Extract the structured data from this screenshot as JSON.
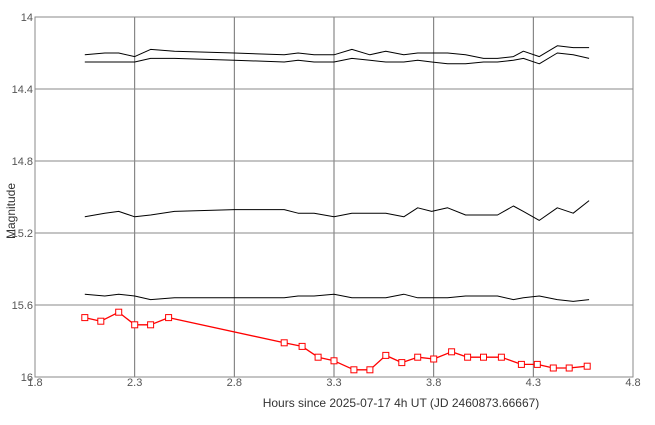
{
  "chart_data": {
    "type": "line",
    "title": "",
    "xlabel": "Hours since 2025-07-17 4h UT (JD 2460873.66667)",
    "ylabel": "Magnitude",
    "xlim": [
      1.8,
      4.8
    ],
    "ylim": [
      16,
      14
    ],
    "y_inverted": true,
    "x_ticks": [
      1.8,
      2.3,
      2.8,
      3.3,
      3.8,
      4.3,
      4.8
    ],
    "x_tick_labels": [
      "1.8",
      "2.3",
      "2.8",
      "3.3",
      "3.8",
      "4.3",
      "4.8"
    ],
    "y_ticks": [
      14,
      14.4,
      14.8,
      15.2,
      15.6,
      16
    ],
    "y_tick_labels": [
      "14",
      "14.4",
      "14.8",
      "15.2",
      "15.6",
      "16"
    ],
    "grid": true,
    "legend": "none",
    "series": [
      {
        "color": "#000000",
        "marker": "none",
        "x": [
          2.05,
          2.15,
          2.22,
          2.3,
          2.38,
          2.5,
          2.8,
          3.05,
          3.12,
          3.2,
          3.3,
          3.39,
          3.48,
          3.56,
          3.65,
          3.72,
          3.79,
          3.87,
          3.96,
          4.05,
          4.12,
          4.2,
          4.25,
          4.33,
          4.42,
          4.5,
          4.58
        ],
        "y": [
          14.21,
          14.2,
          14.2,
          14.22,
          14.18,
          14.19,
          14.2,
          14.21,
          14.2,
          14.21,
          14.21,
          14.18,
          14.21,
          14.19,
          14.21,
          14.2,
          14.2,
          14.2,
          14.21,
          14.23,
          14.23,
          14.22,
          14.19,
          14.22,
          14.16,
          14.17,
          14.17
        ]
      },
      {
        "color": "#000000",
        "marker": "none",
        "x": [
          2.05,
          2.15,
          2.22,
          2.3,
          2.38,
          2.5,
          2.8,
          3.05,
          3.12,
          3.2,
          3.3,
          3.39,
          3.48,
          3.56,
          3.65,
          3.72,
          3.79,
          3.87,
          3.96,
          4.05,
          4.12,
          4.2,
          4.25,
          4.33,
          4.42,
          4.5,
          4.58
        ],
        "y": [
          14.25,
          14.25,
          14.25,
          14.25,
          14.23,
          14.23,
          14.24,
          14.25,
          14.24,
          14.25,
          14.25,
          14.23,
          14.24,
          14.25,
          14.25,
          14.24,
          14.25,
          14.26,
          14.26,
          14.25,
          14.25,
          14.24,
          14.23,
          14.26,
          14.2,
          14.21,
          14.23
        ]
      },
      {
        "color": "#000000",
        "marker": "none",
        "x": [
          2.05,
          2.15,
          2.22,
          2.3,
          2.38,
          2.5,
          2.8,
          3.05,
          3.12,
          3.2,
          3.3,
          3.39,
          3.48,
          3.56,
          3.65,
          3.72,
          3.79,
          3.87,
          3.96,
          4.05,
          4.12,
          4.2,
          4.25,
          4.33,
          4.42,
          4.5,
          4.58
        ],
        "y": [
          15.11,
          15.09,
          15.08,
          15.11,
          15.1,
          15.08,
          15.07,
          15.07,
          15.09,
          15.09,
          15.11,
          15.09,
          15.09,
          15.09,
          15.11,
          15.06,
          15.08,
          15.06,
          15.1,
          15.1,
          15.1,
          15.05,
          15.08,
          15.13,
          15.06,
          15.09,
          15.02
        ]
      },
      {
        "color": "#000000",
        "marker": "none",
        "x": [
          2.05,
          2.15,
          2.22,
          2.3,
          2.38,
          2.5,
          2.8,
          3.05,
          3.12,
          3.2,
          3.3,
          3.39,
          3.48,
          3.56,
          3.65,
          3.72,
          3.79,
          3.87,
          3.96,
          4.05,
          4.12,
          4.2,
          4.25,
          4.33,
          4.42,
          4.5,
          4.58
        ],
        "y": [
          15.54,
          15.55,
          15.54,
          15.55,
          15.57,
          15.56,
          15.56,
          15.56,
          15.55,
          15.55,
          15.54,
          15.56,
          15.56,
          15.56,
          15.54,
          15.56,
          15.56,
          15.56,
          15.55,
          15.55,
          15.55,
          15.57,
          15.56,
          15.55,
          15.57,
          15.58,
          15.57
        ]
      },
      {
        "color": "#ff0000",
        "marker": "square",
        "x": [
          2.05,
          2.13,
          2.22,
          2.3,
          2.38,
          2.47,
          3.05,
          3.14,
          3.22,
          3.3,
          3.4,
          3.48,
          3.56,
          3.64,
          3.72,
          3.8,
          3.89,
          3.97,
          4.05,
          4.14,
          4.24,
          4.32,
          4.4,
          4.48,
          4.57
        ],
        "y": [
          15.67,
          15.69,
          15.64,
          15.71,
          15.71,
          15.67,
          15.81,
          15.83,
          15.89,
          15.91,
          15.96,
          15.96,
          15.88,
          15.92,
          15.89,
          15.9,
          15.86,
          15.89,
          15.89,
          15.89,
          15.93,
          15.93,
          15.95,
          15.95,
          15.94
        ]
      }
    ]
  }
}
